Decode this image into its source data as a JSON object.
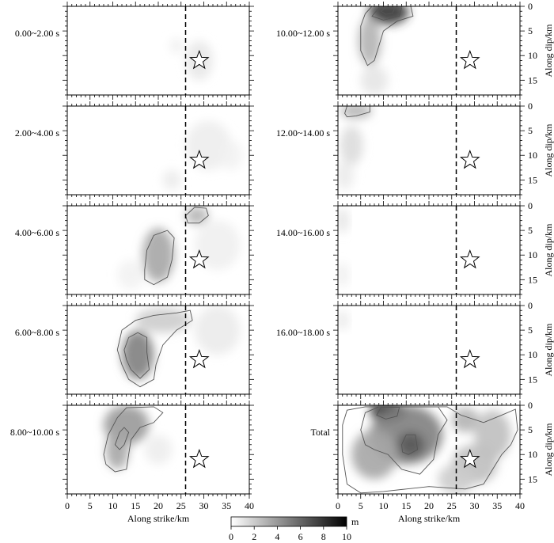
{
  "chart_data": {
    "type": "heatmap",
    "colorbar": {
      "label": "m",
      "ticks": [
        "0",
        "2",
        "4",
        "6",
        "8",
        "10"
      ],
      "range": [
        0,
        10
      ],
      "colormap": "white-to-black"
    },
    "x_axis": {
      "label": "Along strike/km",
      "ticks": [
        "0",
        "5",
        "10",
        "15",
        "20",
        "25",
        "30",
        "35",
        "40"
      ],
      "range": [
        0,
        40
      ]
    },
    "y_axis": {
      "label": "Along dip/km",
      "ticks": [
        "0",
        "5",
        "10",
        "15"
      ],
      "range": [
        0,
        18
      ],
      "inverted": true
    },
    "hypocenter": {
      "x_km": 29,
      "dip_km": 11,
      "marker": "star"
    },
    "reference_line_x_km": 26,
    "panels": [
      {
        "label": "0.00~2.00 s",
        "column": 0,
        "row": 0,
        "contours": [],
        "blobs": [
          {
            "x": 29,
            "y": 11,
            "rx": 3,
            "ry": 4,
            "v": 0.9
          },
          {
            "x": 24,
            "y": 8,
            "rx": 1.5,
            "ry": 1.5,
            "v": 0.6
          }
        ]
      },
      {
        "label": "2.00~4.00 s",
        "column": 0,
        "row": 1,
        "contours": [],
        "blobs": [
          {
            "x": 31,
            "y": 8,
            "rx": 5,
            "ry": 5,
            "v": 0.7
          },
          {
            "x": 23,
            "y": 15,
            "rx": 2,
            "ry": 2,
            "v": 0.8
          },
          {
            "x": 36,
            "y": 10,
            "rx": 2.5,
            "ry": 3,
            "v": 0.5
          }
        ]
      },
      {
        "label": "4.00~6.00 s",
        "column": 0,
        "row": 2,
        "contours": [
          {
            "level": 2,
            "points": [
              [
                17,
                13
              ],
              [
                17.5,
                9
              ],
              [
                19,
                6
              ],
              [
                22,
                5
              ],
              [
                23.5,
                6.5
              ],
              [
                23,
                11
              ],
              [
                22,
                14.5
              ],
              [
                19,
                16
              ],
              [
                17,
                15
              ]
            ]
          },
          {
            "level": 2,
            "points": [
              [
                26,
                2
              ],
              [
                28,
                0.3
              ],
              [
                30.5,
                0.5
              ],
              [
                31,
                2
              ],
              [
                29,
                3.5
              ],
              [
                26.5,
                3.5
              ]
            ]
          }
        ],
        "blobs": [
          {
            "x": 20,
            "y": 10,
            "rx": 3.5,
            "ry": 5.5,
            "v": 3.5
          },
          {
            "x": 28.5,
            "y": 2,
            "rx": 2.5,
            "ry": 1.8,
            "v": 3
          },
          {
            "x": 33,
            "y": 8,
            "rx": 5,
            "ry": 5,
            "v": 0.6
          },
          {
            "x": 14,
            "y": 14,
            "rx": 3,
            "ry": 3,
            "v": 0.5
          }
        ]
      },
      {
        "label": "6.00~8.00 s",
        "column": 0,
        "row": 3,
        "contours": [
          {
            "level": 2,
            "points": [
              [
                11,
                9
              ],
              [
                12,
                5
              ],
              [
                15,
                3
              ],
              [
                19,
                2
              ],
              [
                24,
                1.5
              ],
              [
                27,
                1
              ],
              [
                27.5,
                3
              ],
              [
                24,
                5
              ],
              [
                21,
                8
              ],
              [
                19.5,
                12
              ],
              [
                19,
                15
              ],
              [
                16,
                16.5
              ],
              [
                13.5,
                15
              ],
              [
                12,
                12
              ]
            ]
          },
          {
            "level": 4,
            "points": [
              [
                12.5,
                9
              ],
              [
                13.5,
                6.5
              ],
              [
                15.5,
                5.5
              ],
              [
                17.5,
                6.5
              ],
              [
                17.5,
                9.5
              ],
              [
                18,
                13
              ],
              [
                16,
                14.8
              ],
              [
                14,
                13
              ],
              [
                13,
                11
              ]
            ]
          }
        ],
        "blobs": [
          {
            "x": 15.5,
            "y": 10,
            "rx": 3.5,
            "ry": 5,
            "v": 5
          },
          {
            "x": 21,
            "y": 3,
            "rx": 6,
            "ry": 2.5,
            "v": 2
          },
          {
            "x": 33,
            "y": 5,
            "rx": 5,
            "ry": 5,
            "v": 0.8
          }
        ]
      },
      {
        "label": "8.00~10.00 s",
        "column": 0,
        "row": 4,
        "contours": [
          {
            "level": 2,
            "points": [
              [
                8,
                10
              ],
              [
                9,
                6
              ],
              [
                11,
                2.5
              ],
              [
                13,
                0.5
              ],
              [
                19,
                0.3
              ],
              [
                21,
                1.5
              ],
              [
                19,
                3.5
              ],
              [
                16,
                4.5
              ],
              [
                14,
                7
              ],
              [
                13.5,
                10
              ],
              [
                13,
                13
              ],
              [
                10.5,
                13.5
              ],
              [
                8.5,
                12
              ]
            ]
          },
          {
            "level": 4,
            "points": [
              [
                10.5,
                8
              ],
              [
                11.5,
                5.5
              ],
              [
                12.5,
                4.5
              ],
              [
                13.5,
                5.5
              ],
              [
                12.5,
                8
              ],
              [
                11.5,
                9
              ]
            ]
          }
        ],
        "blobs": [
          {
            "x": 13,
            "y": 4,
            "rx": 5,
            "ry": 4,
            "v": 4
          },
          {
            "x": 11,
            "y": 9,
            "rx": 2.5,
            "ry": 4,
            "v": 3.5
          },
          {
            "x": 20,
            "y": 9,
            "rx": 3,
            "ry": 3,
            "v": 0.7
          }
        ]
      },
      {
        "label": "10.00~12.00 s",
        "column": 1,
        "row": 0,
        "contours": [
          {
            "level": 2,
            "points": [
              [
                5,
                4
              ],
              [
                6,
                1.5
              ],
              [
                7.5,
                0
              ],
              [
                16,
                0
              ],
              [
                16.5,
                2
              ],
              [
                13,
                3
              ],
              [
                10,
                5
              ],
              [
                9,
                8
              ],
              [
                8,
                11
              ],
              [
                6.5,
                12
              ],
              [
                5,
                9
              ]
            ]
          },
          {
            "level": 4,
            "points": [
              [
                7.5,
                2
              ],
              [
                9,
                0.3
              ],
              [
                14,
                0.3
              ],
              [
                13.5,
                2
              ],
              [
                10,
                2.8
              ]
            ]
          },
          {
            "level": 6,
            "points": [
              [
                9.5,
                1
              ],
              [
                10.5,
                0.3
              ],
              [
                12.5,
                0.3
              ],
              [
                12,
                1.4
              ],
              [
                10.5,
                1.6
              ]
            ]
          }
        ],
        "blobs": [
          {
            "x": 11,
            "y": 1.2,
            "rx": 4.5,
            "ry": 2.5,
            "v": 8
          },
          {
            "x": 7,
            "y": 7,
            "rx": 2.5,
            "ry": 5,
            "v": 3
          },
          {
            "x": 8,
            "y": 15,
            "rx": 3,
            "ry": 3,
            "v": 1
          }
        ]
      },
      {
        "label": "12.00~14.00 s",
        "column": 1,
        "row": 1,
        "contours": [
          {
            "level": 2,
            "points": [
              [
                1.5,
                1.5
              ],
              [
                2,
                0
              ],
              [
                7,
                0
              ],
              [
                7,
                1.2
              ],
              [
                4,
                2
              ],
              [
                2,
                2.2
              ]
            ]
          }
        ],
        "blobs": [
          {
            "x": 4,
            "y": 1,
            "rx": 3.5,
            "ry": 1.5,
            "v": 3
          },
          {
            "x": 3,
            "y": 8,
            "rx": 2.5,
            "ry": 4,
            "v": 1.4
          },
          {
            "x": 1.5,
            "y": 14,
            "rx": 2,
            "ry": 3,
            "v": 0.8
          }
        ]
      },
      {
        "label": "14.00~16.00 s",
        "column": 1,
        "row": 2,
        "contours": [],
        "blobs": [
          {
            "x": 1,
            "y": 3,
            "rx": 1.5,
            "ry": 2.5,
            "v": 1
          },
          {
            "x": 1,
            "y": 14,
            "rx": 1.5,
            "ry": 2.5,
            "v": 0.6
          }
        ]
      },
      {
        "label": "16.00~18.00 s",
        "column": 1,
        "row": 3,
        "contours": [],
        "blobs": [
          {
            "x": 1,
            "y": 3,
            "rx": 1.5,
            "ry": 2,
            "v": 0.8
          }
        ]
      },
      {
        "label": "Total",
        "column": 1,
        "row": 4,
        "contours": [
          {
            "level": 2,
            "points": [
              [
                1,
                4
              ],
              [
                2,
                1
              ],
              [
                6,
                0.3
              ],
              [
                24,
                0.3
              ],
              [
                27,
                2
              ],
              [
                32,
                3.5
              ],
              [
                36,
                2
              ],
              [
                39,
                0.8
              ],
              [
                39.5,
                5
              ],
              [
                38,
                8
              ],
              [
                36,
                10
              ],
              [
                34,
                13
              ],
              [
                32,
                16
              ],
              [
                28,
                17
              ],
              [
                20,
                16.5
              ],
              [
                15,
                17
              ],
              [
                10,
                17.5
              ],
              [
                5,
                17.8
              ],
              [
                2,
                16
              ],
              [
                1,
                10
              ]
            ]
          },
          {
            "level": 4,
            "points": [
              [
                5,
                5
              ],
              [
                6,
                1.5
              ],
              [
                9,
                0.3
              ],
              [
                22,
                0.3
              ],
              [
                24,
                3
              ],
              [
                22,
                6
              ],
              [
                21,
                11
              ],
              [
                18,
                14
              ],
              [
                14,
                13
              ],
              [
                11,
                10
              ],
              [
                8,
                9
              ],
              [
                6,
                8
              ]
            ]
          },
          {
            "level": 6,
            "points": [
              [
                8.5,
                2
              ],
              [
                9.5,
                0.4
              ],
              [
                13.5,
                0.4
              ],
              [
                13,
                2.2
              ],
              [
                10.5,
                2.8
              ]
            ]
          },
          {
            "level": 6,
            "points": [
              [
                14,
                8
              ],
              [
                15,
                6
              ],
              [
                17,
                6
              ],
              [
                17.5,
                9
              ],
              [
                15.5,
                10
              ],
              [
                14.2,
                9.5
              ]
            ]
          }
        ],
        "blobs": [
          {
            "x": 11,
            "y": 1.2,
            "rx": 4,
            "ry": 2.2,
            "v": 8.5
          },
          {
            "x": 15,
            "y": 6,
            "rx": 8,
            "ry": 6,
            "v": 5
          },
          {
            "x": 16,
            "y": 8,
            "rx": 3,
            "ry": 2.5,
            "v": 6.5
          },
          {
            "x": 8,
            "y": 10,
            "rx": 5,
            "ry": 5,
            "v": 3.5
          },
          {
            "x": 28,
            "y": 3,
            "rx": 3,
            "ry": 2.5,
            "v": 3
          },
          {
            "x": 34,
            "y": 6,
            "rx": 4,
            "ry": 5,
            "v": 2.5
          },
          {
            "x": 30,
            "y": 12,
            "rx": 5,
            "ry": 4,
            "v": 2.5
          },
          {
            "x": 26,
            "y": 15,
            "rx": 4,
            "ry": 3,
            "v": 2
          }
        ]
      }
    ]
  }
}
